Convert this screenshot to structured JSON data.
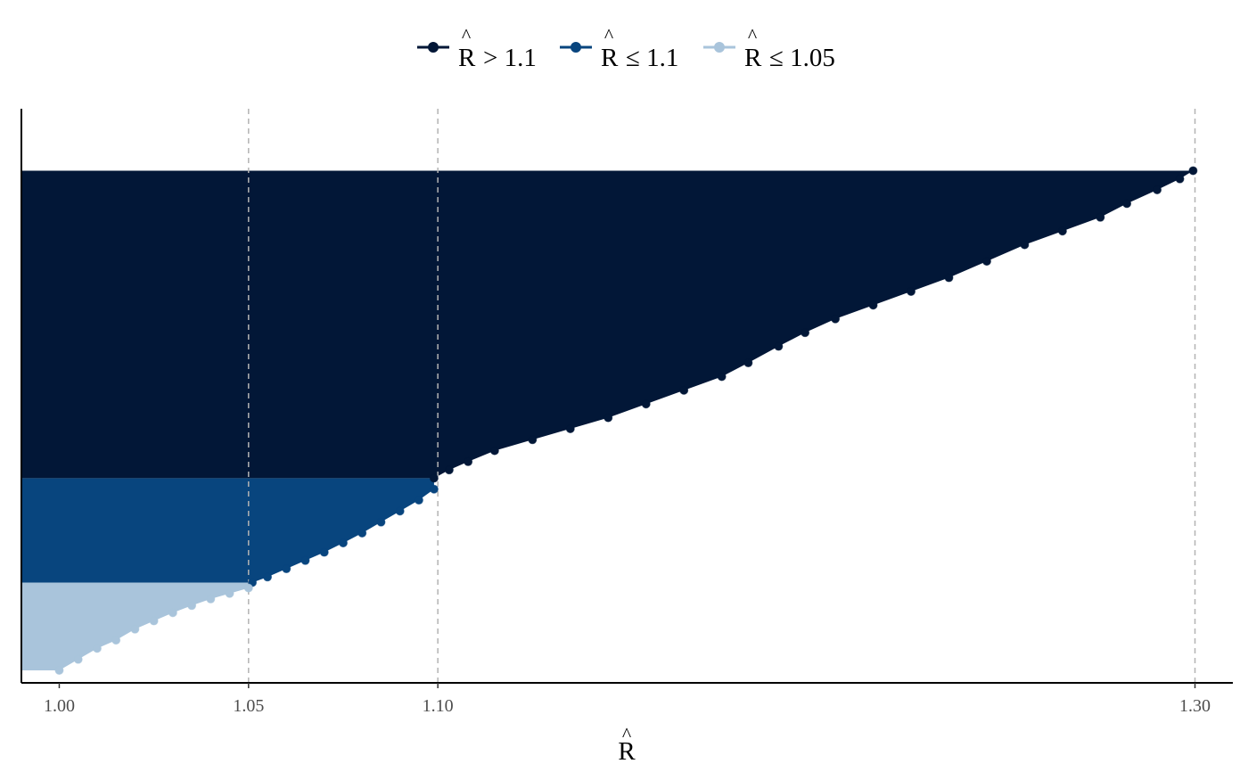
{
  "chart_data": {
    "type": "area",
    "title": "",
    "xlabel": "R",
    "ylabel": "",
    "xlim": [
      0.99,
      1.31
    ],
    "x_ticks": [
      1.0,
      1.05,
      1.1,
      1.3
    ],
    "x_tick_labels": [
      "1.00",
      "1.05",
      "1.10",
      "1.30"
    ],
    "reference_lines": [
      1.05,
      1.1,
      1.3
    ],
    "grid": false,
    "legend_position": "top",
    "rank_range": [
      0,
      1
    ],
    "series": [
      {
        "name": "R > 1.1",
        "legend_label": {
          "symbol": "R",
          "relation": "> 1.1"
        },
        "color": "#021737",
        "x": [
          1.099,
          1.103,
          1.108,
          1.115,
          1.125,
          1.135,
          1.145,
          1.155,
          1.165,
          1.175,
          1.182,
          1.19,
          1.197,
          1.205,
          1.215,
          1.225,
          1.235,
          1.245,
          1.255,
          1.265,
          1.275,
          1.282,
          1.29,
          1.296,
          1.2995
        ],
        "rank": [
          0.35,
          0.365,
          0.38,
          0.4,
          0.42,
          0.44,
          0.46,
          0.485,
          0.51,
          0.535,
          0.56,
          0.59,
          0.615,
          0.64,
          0.665,
          0.69,
          0.715,
          0.745,
          0.775,
          0.8,
          0.825,
          0.85,
          0.875,
          0.895,
          0.91
        ]
      },
      {
        "name": "R ≤ 1.1",
        "legend_label": {
          "symbol": "R",
          "relation": "≤ 1.1"
        },
        "color": "#08457e",
        "x": [
          1.051,
          1.055,
          1.06,
          1.065,
          1.07,
          1.075,
          1.08,
          1.085,
          1.09,
          1.095,
          1.099
        ],
        "rank": [
          0.16,
          0.17,
          0.185,
          0.2,
          0.215,
          0.232,
          0.25,
          0.27,
          0.29,
          0.31,
          0.33
        ]
      },
      {
        "name": "R ≤ 1.05",
        "legend_label": {
          "symbol": "R",
          "relation": "≤ 1.05"
        },
        "color": "#a9c4db",
        "x": [
          1.0,
          1.005,
          1.01,
          1.015,
          1.02,
          1.025,
          1.03,
          1.035,
          1.04,
          1.045,
          1.05
        ],
        "rank": [
          0.0,
          0.02,
          0.04,
          0.055,
          0.075,
          0.09,
          0.105,
          0.118,
          0.13,
          0.14,
          0.15
        ]
      }
    ]
  }
}
